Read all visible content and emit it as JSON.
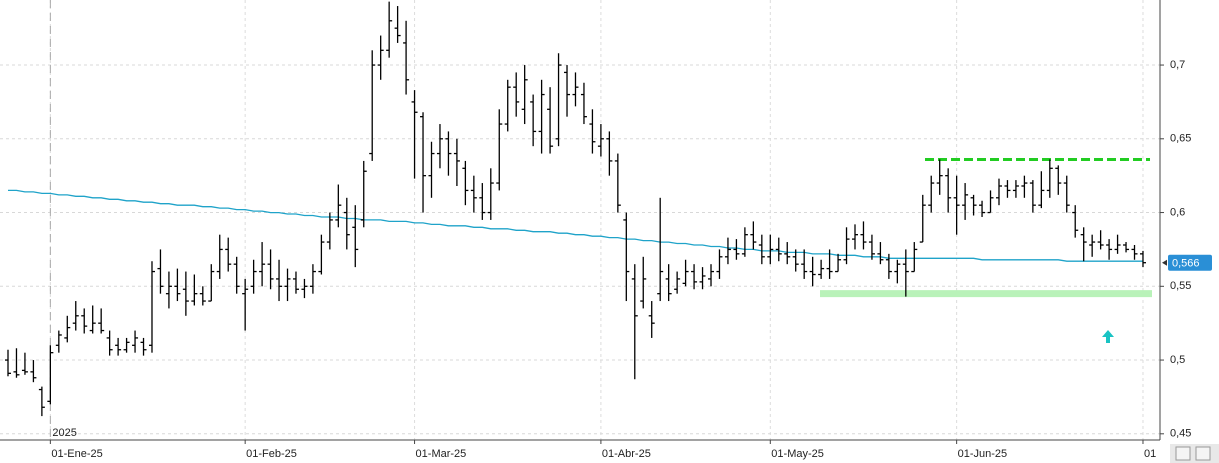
{
  "chart_data": {
    "type": "ohlc",
    "color": "#000000",
    "categories": [
      null,
      null,
      null,
      null,
      null,
      "01-Ene-25",
      null,
      null,
      null,
      null,
      null,
      null,
      null,
      null,
      null,
      null,
      null,
      null,
      null,
      null,
      null,
      null,
      null,
      null,
      null,
      null,
      null,
      null,
      "01-Feb-25",
      null,
      null,
      null,
      null,
      null,
      null,
      null,
      null,
      null,
      null,
      null,
      null,
      null,
      null,
      null,
      null,
      null,
      null,
      null,
      "01-Mar-25",
      null,
      null,
      null,
      null,
      null,
      null,
      null,
      null,
      null,
      null,
      null,
      null,
      null,
      null,
      null,
      null,
      null,
      null,
      null,
      null,
      null,
      "01-Abr-25",
      null,
      null,
      null,
      null,
      null,
      null,
      null,
      null,
      null,
      null,
      null,
      null,
      null,
      null,
      null,
      null,
      null,
      null,
      null,
      "01-May-25",
      null,
      null,
      null,
      null,
      null,
      null,
      null,
      null,
      null,
      null,
      null,
      null,
      null,
      null,
      null,
      null,
      null,
      null,
      null,
      null,
      null,
      "01-Jun-25",
      null,
      null,
      null,
      null,
      null,
      null,
      null,
      null,
      null,
      null,
      null,
      null,
      null,
      null,
      null,
      null,
      null,
      null,
      null,
      null,
      null,
      "01"
    ],
    "open": [
      0.5,
      0.492,
      0.493,
      0.492,
      0.48,
      0.472,
      0.51,
      0.515,
      0.525,
      0.53,
      0.52,
      0.525,
      0.515,
      0.51,
      0.507,
      0.51,
      0.512,
      0.51,
      0.562,
      0.545,
      0.55,
      0.548,
      0.54,
      0.545,
      0.54,
      0.56,
      0.575,
      0.565,
      0.545,
      0.55,
      0.56,
      0.565,
      0.555,
      0.55,
      0.555,
      0.548,
      0.55,
      0.56,
      0.58,
      0.595,
      0.6,
      0.59,
      0.595,
      0.64,
      0.7,
      0.71,
      0.725,
      0.715,
      0.675,
      0.665,
      0.625,
      0.64,
      0.65,
      0.64,
      0.63,
      0.615,
      0.61,
      0.6,
      0.62,
      0.66,
      0.685,
      0.67,
      0.675,
      0.655,
      0.67,
      0.65,
      0.695,
      0.68,
      0.68,
      0.66,
      0.645,
      0.65,
      0.635,
      0.595,
      0.555,
      0.54,
      0.53,
      0.545,
      0.555,
      0.548,
      0.552,
      0.56,
      0.553,
      0.555,
      0.56,
      0.57,
      0.575,
      0.572,
      0.585,
      0.578,
      0.57,
      0.575,
      0.572,
      0.57,
      0.565,
      0.56,
      0.558,
      0.562,
      0.56,
      0.568,
      0.582,
      0.585,
      0.58,
      0.572,
      0.568,
      0.56,
      0.565,
      0.56,
      0.58,
      0.605,
      0.62,
      0.625,
      0.61,
      0.605,
      0.61,
      0.605,
      0.6,
      0.61,
      0.618,
      0.615,
      0.618,
      0.62,
      0.605,
      0.615,
      0.63,
      0.62,
      0.6,
      0.585,
      0.578,
      0.58,
      0.578,
      0.575,
      0.578,
      0.575,
      0.572
    ],
    "high": [
      0.507,
      0.508,
      0.505,
      0.5,
      0.482,
      0.51,
      0.52,
      0.53,
      0.54,
      0.535,
      0.537,
      0.535,
      0.52,
      0.515,
      0.515,
      0.52,
      0.515,
      0.567,
      0.575,
      0.56,
      0.562,
      0.56,
      0.558,
      0.55,
      0.565,
      0.585,
      0.583,
      0.57,
      0.555,
      0.568,
      0.58,
      0.575,
      0.568,
      0.562,
      0.56,
      0.555,
      0.565,
      0.585,
      0.6,
      0.619,
      0.61,
      0.605,
      0.635,
      0.71,
      0.72,
      0.743,
      0.74,
      0.73,
      0.683,
      0.668,
      0.648,
      0.66,
      0.655,
      0.65,
      0.635,
      0.625,
      0.62,
      0.63,
      0.67,
      0.69,
      0.695,
      0.7,
      0.68,
      0.69,
      0.685,
      0.708,
      0.7,
      0.695,
      0.688,
      0.67,
      0.66,
      0.655,
      0.64,
      0.6,
      0.565,
      0.57,
      0.54,
      0.61,
      0.565,
      0.56,
      0.568,
      0.565,
      0.563,
      0.565,
      0.575,
      0.583,
      0.582,
      0.59,
      0.594,
      0.585,
      0.585,
      0.583,
      0.58,
      0.575,
      0.575,
      0.57,
      0.568,
      0.575,
      0.572,
      0.59,
      0.592,
      0.594,
      0.585,
      0.58,
      0.572,
      0.568,
      0.575,
      0.58,
      0.612,
      0.625,
      0.636,
      0.63,
      0.625,
      0.62,
      0.612,
      0.608,
      0.615,
      0.623,
      0.622,
      0.622,
      0.625,
      0.622,
      0.628,
      0.636,
      0.632,
      0.625,
      0.605,
      0.59,
      0.585,
      0.588,
      0.582,
      0.585,
      0.58,
      0.578,
      0.574
    ],
    "low": [
      0.489,
      0.488,
      0.49,
      0.485,
      0.462,
      0.47,
      0.505,
      0.512,
      0.52,
      0.518,
      0.518,
      0.518,
      0.503,
      0.503,
      0.505,
      0.505,
      0.503,
      0.505,
      0.545,
      0.535,
      0.54,
      0.53,
      0.537,
      0.537,
      0.54,
      0.555,
      0.56,
      0.545,
      0.52,
      0.545,
      0.55,
      0.548,
      0.54,
      0.54,
      0.545,
      0.542,
      0.545,
      0.558,
      0.575,
      0.59,
      0.575,
      0.563,
      0.59,
      0.635,
      0.69,
      0.705,
      0.715,
      0.68,
      0.623,
      0.6,
      0.61,
      0.63,
      0.625,
      0.618,
      0.605,
      0.6,
      0.595,
      0.595,
      0.615,
      0.655,
      0.665,
      0.66,
      0.645,
      0.64,
      0.64,
      0.645,
      0.665,
      0.672,
      0.66,
      0.64,
      0.638,
      0.625,
      0.6,
      0.54,
      0.487,
      0.535,
      0.515,
      0.54,
      0.54,
      0.545,
      0.55,
      0.548,
      0.548,
      0.55,
      0.555,
      0.565,
      0.568,
      0.57,
      0.575,
      0.565,
      0.565,
      0.567,
      0.565,
      0.56,
      0.555,
      0.55,
      0.555,
      0.555,
      0.56,
      0.565,
      0.575,
      0.575,
      0.568,
      0.565,
      0.555,
      0.552,
      0.543,
      0.56,
      0.58,
      0.6,
      0.612,
      0.6,
      0.585,
      0.595,
      0.598,
      0.597,
      0.6,
      0.605,
      0.61,
      0.61,
      0.61,
      0.6,
      0.603,
      0.61,
      0.612,
      0.6,
      0.583,
      0.567,
      0.57,
      0.575,
      0.568,
      0.572,
      0.573,
      0.568,
      0.563
    ],
    "close": [
      0.491,
      0.49,
      0.492,
      0.488,
      0.468,
      0.505,
      0.517,
      0.522,
      0.53,
      0.523,
      0.525,
      0.52,
      0.507,
      0.507,
      0.512,
      0.515,
      0.507,
      0.56,
      0.55,
      0.55,
      0.545,
      0.54,
      0.545,
      0.54,
      0.56,
      0.575,
      0.565,
      0.55,
      0.548,
      0.56,
      0.565,
      0.555,
      0.55,
      0.555,
      0.548,
      0.55,
      0.56,
      0.58,
      0.595,
      0.605,
      0.585,
      0.575,
      0.628,
      0.7,
      0.71,
      0.73,
      0.72,
      0.69,
      0.668,
      0.625,
      0.64,
      0.65,
      0.64,
      0.635,
      0.615,
      0.61,
      0.6,
      0.62,
      0.66,
      0.685,
      0.675,
      0.69,
      0.655,
      0.68,
      0.645,
      0.7,
      0.68,
      0.685,
      0.665,
      0.648,
      0.65,
      0.635,
      0.605,
      0.56,
      0.53,
      0.555,
      0.525,
      0.56,
      0.545,
      0.555,
      0.56,
      0.553,
      0.557,
      0.56,
      0.57,
      0.575,
      0.572,
      0.585,
      0.58,
      0.57,
      0.575,
      0.572,
      0.57,
      0.565,
      0.56,
      0.558,
      0.562,
      0.56,
      0.568,
      0.582,
      0.585,
      0.58,
      0.572,
      0.568,
      0.56,
      0.565,
      0.56,
      0.575,
      0.605,
      0.62,
      0.625,
      0.61,
      0.605,
      0.612,
      0.605,
      0.6,
      0.61,
      0.618,
      0.615,
      0.618,
      0.62,
      0.605,
      0.615,
      0.63,
      0.62,
      0.605,
      0.588,
      0.58,
      0.58,
      0.578,
      0.575,
      0.578,
      0.575,
      0.572,
      0.566
    ],
    "moving_average": {
      "color": "#1fa3c9",
      "values": [
        0.615,
        0.615,
        0.614,
        0.614,
        0.613,
        0.613,
        0.612,
        0.612,
        0.611,
        0.611,
        0.61,
        0.61,
        0.609,
        0.609,
        0.608,
        0.608,
        0.607,
        0.607,
        0.606,
        0.606,
        0.605,
        0.605,
        0.605,
        0.604,
        0.604,
        0.603,
        0.603,
        0.602,
        0.602,
        0.601,
        0.601,
        0.6,
        0.6,
        0.599,
        0.599,
        0.598,
        0.598,
        0.597,
        0.597,
        0.597,
        0.596,
        0.596,
        0.595,
        0.595,
        0.595,
        0.594,
        0.594,
        0.594,
        0.593,
        0.593,
        0.592,
        0.592,
        0.591,
        0.591,
        0.591,
        0.59,
        0.59,
        0.589,
        0.589,
        0.589,
        0.588,
        0.588,
        0.587,
        0.587,
        0.587,
        0.586,
        0.586,
        0.585,
        0.585,
        0.584,
        0.584,
        0.583,
        0.583,
        0.582,
        0.582,
        0.581,
        0.581,
        0.58,
        0.58,
        0.579,
        0.579,
        0.578,
        0.578,
        0.577,
        0.577,
        0.576,
        0.576,
        0.575,
        0.575,
        0.574,
        0.574,
        0.574,
        0.573,
        0.573,
        0.573,
        0.572,
        0.572,
        0.572,
        0.571,
        0.571,
        0.571,
        0.57,
        0.57,
        0.57,
        0.569,
        0.569,
        0.569,
        0.569,
        0.569,
        0.569,
        0.569,
        0.569,
        0.569,
        0.569,
        0.569,
        0.568,
        0.568,
        0.568,
        0.568,
        0.568,
        0.568,
        0.568,
        0.568,
        0.568,
        0.568,
        0.567,
        0.567,
        0.567,
        0.567,
        0.567,
        0.567,
        0.567,
        0.567,
        0.567,
        0.567
      ]
    },
    "ylim": [
      0.4458,
      0.7441
    ],
    "yticks": [
      {
        "value": 0.45,
        "label": "0,45"
      },
      {
        "value": 0.5,
        "label": "0,5"
      },
      {
        "value": 0.55,
        "label": "0,55"
      },
      {
        "value": 0.6,
        "label": "0,6"
      },
      {
        "value": 0.65,
        "label": "0,65"
      },
      {
        "value": 0.7,
        "label": "0,7"
      }
    ],
    "grid": true,
    "year_label": "2025",
    "resistance": {
      "value": 0.636,
      "color": "#22cc22"
    },
    "support": {
      "value": 0.545,
      "color": "#b9f2b9"
    },
    "last_price": {
      "value": 0.566,
      "label": "0,566",
      "color": "#2a8fd6"
    }
  }
}
